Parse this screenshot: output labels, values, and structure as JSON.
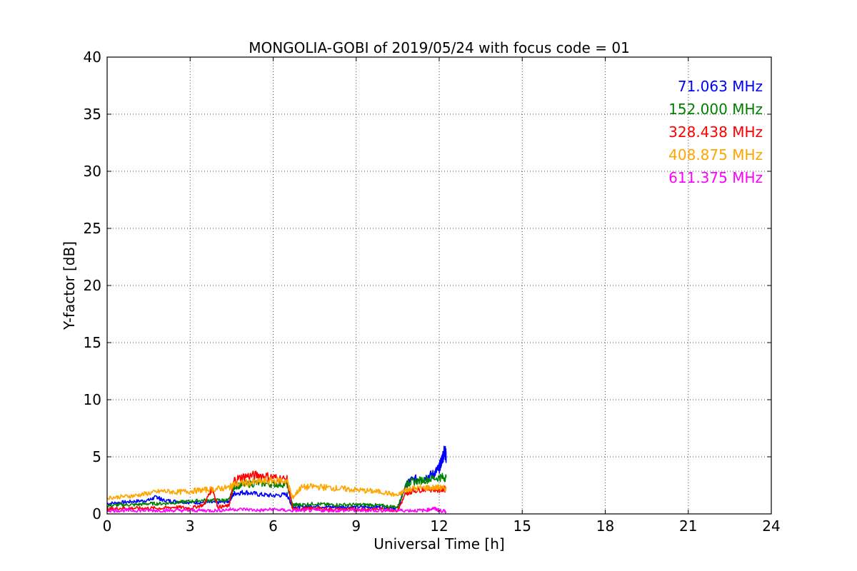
{
  "chart_data": {
    "type": "line",
    "title": "MONGOLIA-GOBI of 2019/05/24 with focus code = 01",
    "xlabel": "Universal Time [h]",
    "ylabel": "Y-factor [dB]",
    "xlim": [
      0,
      24
    ],
    "ylim": [
      0,
      40
    ],
    "xticks": [
      0,
      3,
      6,
      9,
      12,
      15,
      18,
      21,
      24
    ],
    "yticks": [
      0,
      5,
      10,
      15,
      20,
      25,
      30,
      35,
      40
    ],
    "grid": true,
    "legend_position": "top-right",
    "series": [
      {
        "name": "71.063 MHz",
        "color": "#0000ff",
        "x": [
          0,
          0.5,
          1,
          1.5,
          1.8,
          2,
          2.5,
          3,
          3.5,
          4,
          4.4,
          4.6,
          5,
          5.5,
          6,
          6.5,
          6.7,
          7,
          7.5,
          8,
          8.5,
          9,
          9.5,
          10,
          10.5,
          10.8,
          11,
          11.5,
          11.8,
          12,
          12.1,
          12.2,
          12.25
        ],
        "y": [
          0.9,
          1.0,
          1.1,
          1.2,
          1.5,
          1.2,
          1.1,
          1.0,
          1.0,
          1.0,
          1.1,
          1.8,
          1.9,
          1.7,
          1.6,
          1.7,
          0.6,
          0.6,
          0.7,
          0.6,
          0.6,
          0.6,
          0.6,
          0.6,
          0.5,
          2.5,
          3.0,
          3.2,
          3.5,
          4.0,
          4.8,
          5.6,
          5.0
        ]
      },
      {
        "name": "152.000 MHz",
        "color": "#008000",
        "x": [
          0,
          0.5,
          1,
          1.5,
          2,
          2.5,
          3,
          3.5,
          4,
          4.4,
          4.6,
          5,
          5.5,
          6,
          6.5,
          6.7,
          7,
          7.5,
          8,
          8.5,
          9,
          9.5,
          10,
          10.5,
          10.8,
          11,
          11.5,
          12,
          12.25
        ],
        "y": [
          0.7,
          0.8,
          0.8,
          0.9,
          0.9,
          1.0,
          1.1,
          1.2,
          1.2,
          1.2,
          2.4,
          2.6,
          2.7,
          2.6,
          2.6,
          0.8,
          0.8,
          0.9,
          0.8,
          0.8,
          0.8,
          0.8,
          0.7,
          0.6,
          2.6,
          2.8,
          3.0,
          3.2,
          3.2
        ]
      },
      {
        "name": "328.438 MHz",
        "color": "#ff0000",
        "x": [
          0,
          0.5,
          1,
          1.5,
          2,
          2.5,
          3,
          3.5,
          3.8,
          4,
          4.4,
          4.6,
          5,
          5.5,
          6,
          6.5,
          6.7,
          7,
          7.5,
          8,
          8.5,
          9,
          9.5,
          10,
          10.5,
          10.8,
          11,
          11.5,
          12,
          12.25
        ],
        "y": [
          0.4,
          0.5,
          0.5,
          0.5,
          0.5,
          0.6,
          0.5,
          0.8,
          2.3,
          0.6,
          0.7,
          3.0,
          3.3,
          3.4,
          3.2,
          3.0,
          0.4,
          0.4,
          0.5,
          0.4,
          0.4,
          0.4,
          0.4,
          0.4,
          0.3,
          1.8,
          2.0,
          2.2,
          2.1,
          2.2
        ]
      },
      {
        "name": "408.875 MHz",
        "color": "#ffa500",
        "x": [
          0,
          0.5,
          1,
          1.5,
          2,
          2.5,
          3,
          3.5,
          4,
          4.4,
          4.6,
          5,
          5.5,
          6,
          6.5,
          6.7,
          7,
          7.5,
          8,
          8.5,
          9,
          9.5,
          10,
          10.5,
          10.8,
          11,
          11.5,
          12,
          12.25
        ],
        "y": [
          1.4,
          1.5,
          1.6,
          1.8,
          2.0,
          1.9,
          2.0,
          2.1,
          2.2,
          2.3,
          2.6,
          2.7,
          2.8,
          2.9,
          2.9,
          1.4,
          2.3,
          2.4,
          2.3,
          2.2,
          2.1,
          2.0,
          1.9,
          1.6,
          2.1,
          2.2,
          2.3,
          2.3,
          2.2
        ]
      },
      {
        "name": "611.375 MHz",
        "color": "#ff00ff",
        "x": [
          0,
          0.5,
          1,
          1.5,
          2,
          2.5,
          3,
          3.5,
          4,
          4.5,
          5,
          5.5,
          6,
          6.5,
          7,
          7.5,
          8,
          8.5,
          9,
          9.5,
          10,
          10.5,
          11,
          11.5,
          11.8,
          12,
          12.25
        ],
        "y": [
          0.3,
          0.3,
          0.3,
          0.3,
          0.3,
          0.3,
          0.3,
          0.3,
          0.3,
          0.4,
          0.4,
          0.3,
          0.4,
          0.3,
          0.3,
          0.3,
          0.3,
          0.3,
          0.3,
          0.3,
          0.3,
          0.3,
          0.3,
          0.3,
          0.5,
          0.3,
          0.2
        ]
      }
    ]
  }
}
